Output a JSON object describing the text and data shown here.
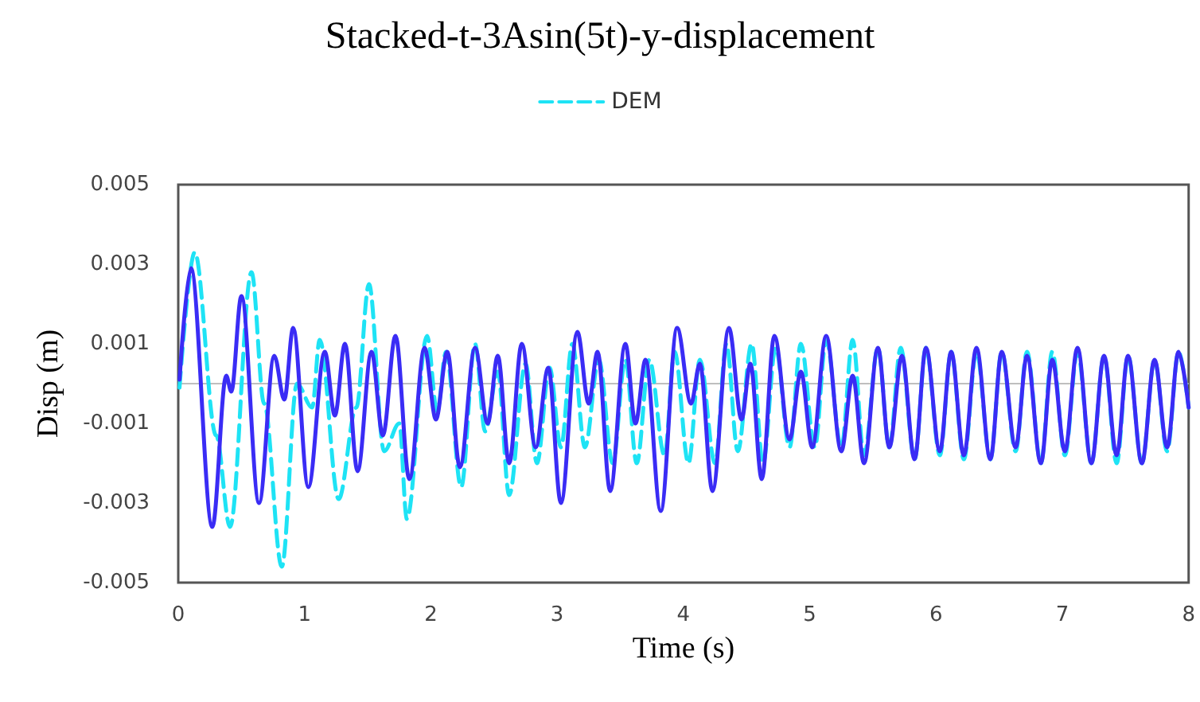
{
  "chart_data": {
    "type": "line",
    "title": "Stacked-t-3Asin(5t)-y-displacement",
    "xlabel": "Time (s)",
    "ylabel": "Disp (m)",
    "xlim": [
      0,
      8
    ],
    "xticks": [
      0,
      1,
      2,
      3,
      4,
      5,
      6,
      7,
      8
    ],
    "ylim": [
      -0.005,
      0.005
    ],
    "yticks": [
      -0.005,
      -0.003,
      -0.001,
      0.001,
      0.003,
      0.005
    ],
    "grid": false,
    "legend": "top",
    "marker": "none",
    "ref_lines": [
      {
        "axis": "y",
        "value": 0,
        "color": "#bfbfbf"
      }
    ],
    "series": [
      {
        "color": "#3a2cf5",
        "line_style": "solid",
        "x": [
          0.01,
          0.1,
          0.27,
          0.38,
          0.42,
          0.5,
          0.64,
          0.76,
          0.84,
          0.91,
          1.03,
          1.16,
          1.24,
          1.32,
          1.42,
          1.53,
          1.62,
          1.72,
          1.83,
          1.95,
          2.04,
          2.13,
          2.23,
          2.35,
          2.45,
          2.53,
          2.62,
          2.72,
          2.83,
          2.93,
          3.03,
          3.16,
          3.25,
          3.32,
          3.42,
          3.54,
          3.62,
          3.7,
          3.82,
          3.95,
          4.06,
          4.13,
          4.23,
          4.36,
          4.46,
          4.53,
          4.62,
          4.72,
          4.84,
          4.93,
          5.02,
          5.13,
          5.25,
          5.34,
          5.43,
          5.54,
          5.63,
          5.73,
          5.83,
          5.92,
          6.03,
          6.12,
          6.22,
          6.32,
          6.43,
          6.52,
          6.63,
          6.72,
          6.83,
          6.92,
          7.02,
          7.12,
          7.23,
          7.33,
          7.43,
          7.52,
          7.63,
          7.73,
          7.83,
          7.92,
          8
        ],
        "values": [
          0.0001,
          0.0029,
          -0.0036,
          0.0002,
          -0.0002,
          0.0022,
          -0.003,
          0.0007,
          -0.0004,
          0.0014,
          -0.0026,
          0.0008,
          -0.0008,
          0.001,
          -0.0022,
          0.0008,
          -0.0013,
          0.0012,
          -0.0024,
          0.0009,
          -0.0009,
          0.0008,
          -0.0021,
          0.0009,
          -0.001,
          0.0007,
          -0.002,
          0.001,
          -0.0016,
          0.0004,
          -0.003,
          0.0013,
          -0.0005,
          0.0008,
          -0.0027,
          0.001,
          -0.001,
          0.0006,
          -0.0032,
          0.0014,
          -0.0005,
          0.0005,
          -0.0027,
          0.0014,
          -0.0009,
          0.0005,
          -0.0024,
          0.0012,
          -0.0014,
          0.0003,
          -0.0016,
          0.0012,
          -0.0017,
          0.0002,
          -0.002,
          0.0009,
          -0.0016,
          0.0007,
          -0.0019,
          0.0009,
          -0.0017,
          0.0008,
          -0.0018,
          0.0009,
          -0.0019,
          0.0008,
          -0.0016,
          0.0007,
          -0.002,
          0.0006,
          -0.0017,
          0.0009,
          -0.002,
          0.0007,
          -0.0018,
          0.0007,
          -0.002,
          0.0006,
          -0.0016,
          0.0008,
          -0.0006
        ]
      },
      {
        "name": "DEM",
        "color": "#1ee3f5",
        "line_style": "dashed",
        "x": [
          0.01,
          0.13,
          0.3,
          0.41,
          0.58,
          0.68,
          0.82,
          0.94,
          1.06,
          1.12,
          1.27,
          1.41,
          1.51,
          1.63,
          1.75,
          1.81,
          1.97,
          2.05,
          2.12,
          2.24,
          2.35,
          2.43,
          2.53,
          2.62,
          2.75,
          2.84,
          2.94,
          3.03,
          3.12,
          3.22,
          3.33,
          3.44,
          3.54,
          3.63,
          3.73,
          3.85,
          3.93,
          4.04,
          4.13,
          4.25,
          4.34,
          4.43,
          4.54,
          4.63,
          4.73,
          4.84,
          4.93,
          5.04,
          5.13,
          5.25,
          5.34,
          5.43,
          5.54,
          5.63,
          5.72,
          5.83,
          5.92,
          6.03,
          6.12,
          6.22,
          6.32,
          6.43,
          6.52,
          6.63,
          6.72,
          6.83,
          6.92,
          7.02,
          7.12,
          7.23,
          7.33,
          7.43,
          7.52,
          7.63,
          7.73,
          7.83,
          7.92,
          8
        ],
        "values": [
          -0.0001,
          0.0033,
          -0.0013,
          -0.0036,
          0.0028,
          -0.0005,
          -0.0046,
          0.0,
          -0.0006,
          0.0011,
          -0.0029,
          -0.0006,
          0.0025,
          -0.0017,
          -0.001,
          -0.0034,
          0.0012,
          -0.0007,
          0.0008,
          -0.0026,
          0.001,
          -0.0012,
          0.0003,
          -0.0028,
          0.0005,
          -0.002,
          0.0004,
          -0.0016,
          0.001,
          -0.0016,
          0.0006,
          -0.002,
          0.0006,
          -0.002,
          0.0006,
          -0.0018,
          0.0008,
          -0.002,
          0.0006,
          -0.002,
          0.001,
          -0.0017,
          0.001,
          -0.002,
          0.0009,
          -0.0016,
          0.001,
          -0.0016,
          0.0011,
          -0.0016,
          0.0011,
          -0.0018,
          0.0009,
          -0.0016,
          0.0009,
          -0.0019,
          0.0009,
          -0.0018,
          0.0008,
          -0.0019,
          0.0008,
          -0.0019,
          0.0008,
          -0.0017,
          0.0008,
          -0.002,
          0.0008,
          -0.0018,
          0.0008,
          -0.002,
          0.0007,
          -0.002,
          0.0007,
          -0.002,
          0.0006,
          -0.0017,
          0.0008,
          -0.0006
        ]
      }
    ]
  }
}
